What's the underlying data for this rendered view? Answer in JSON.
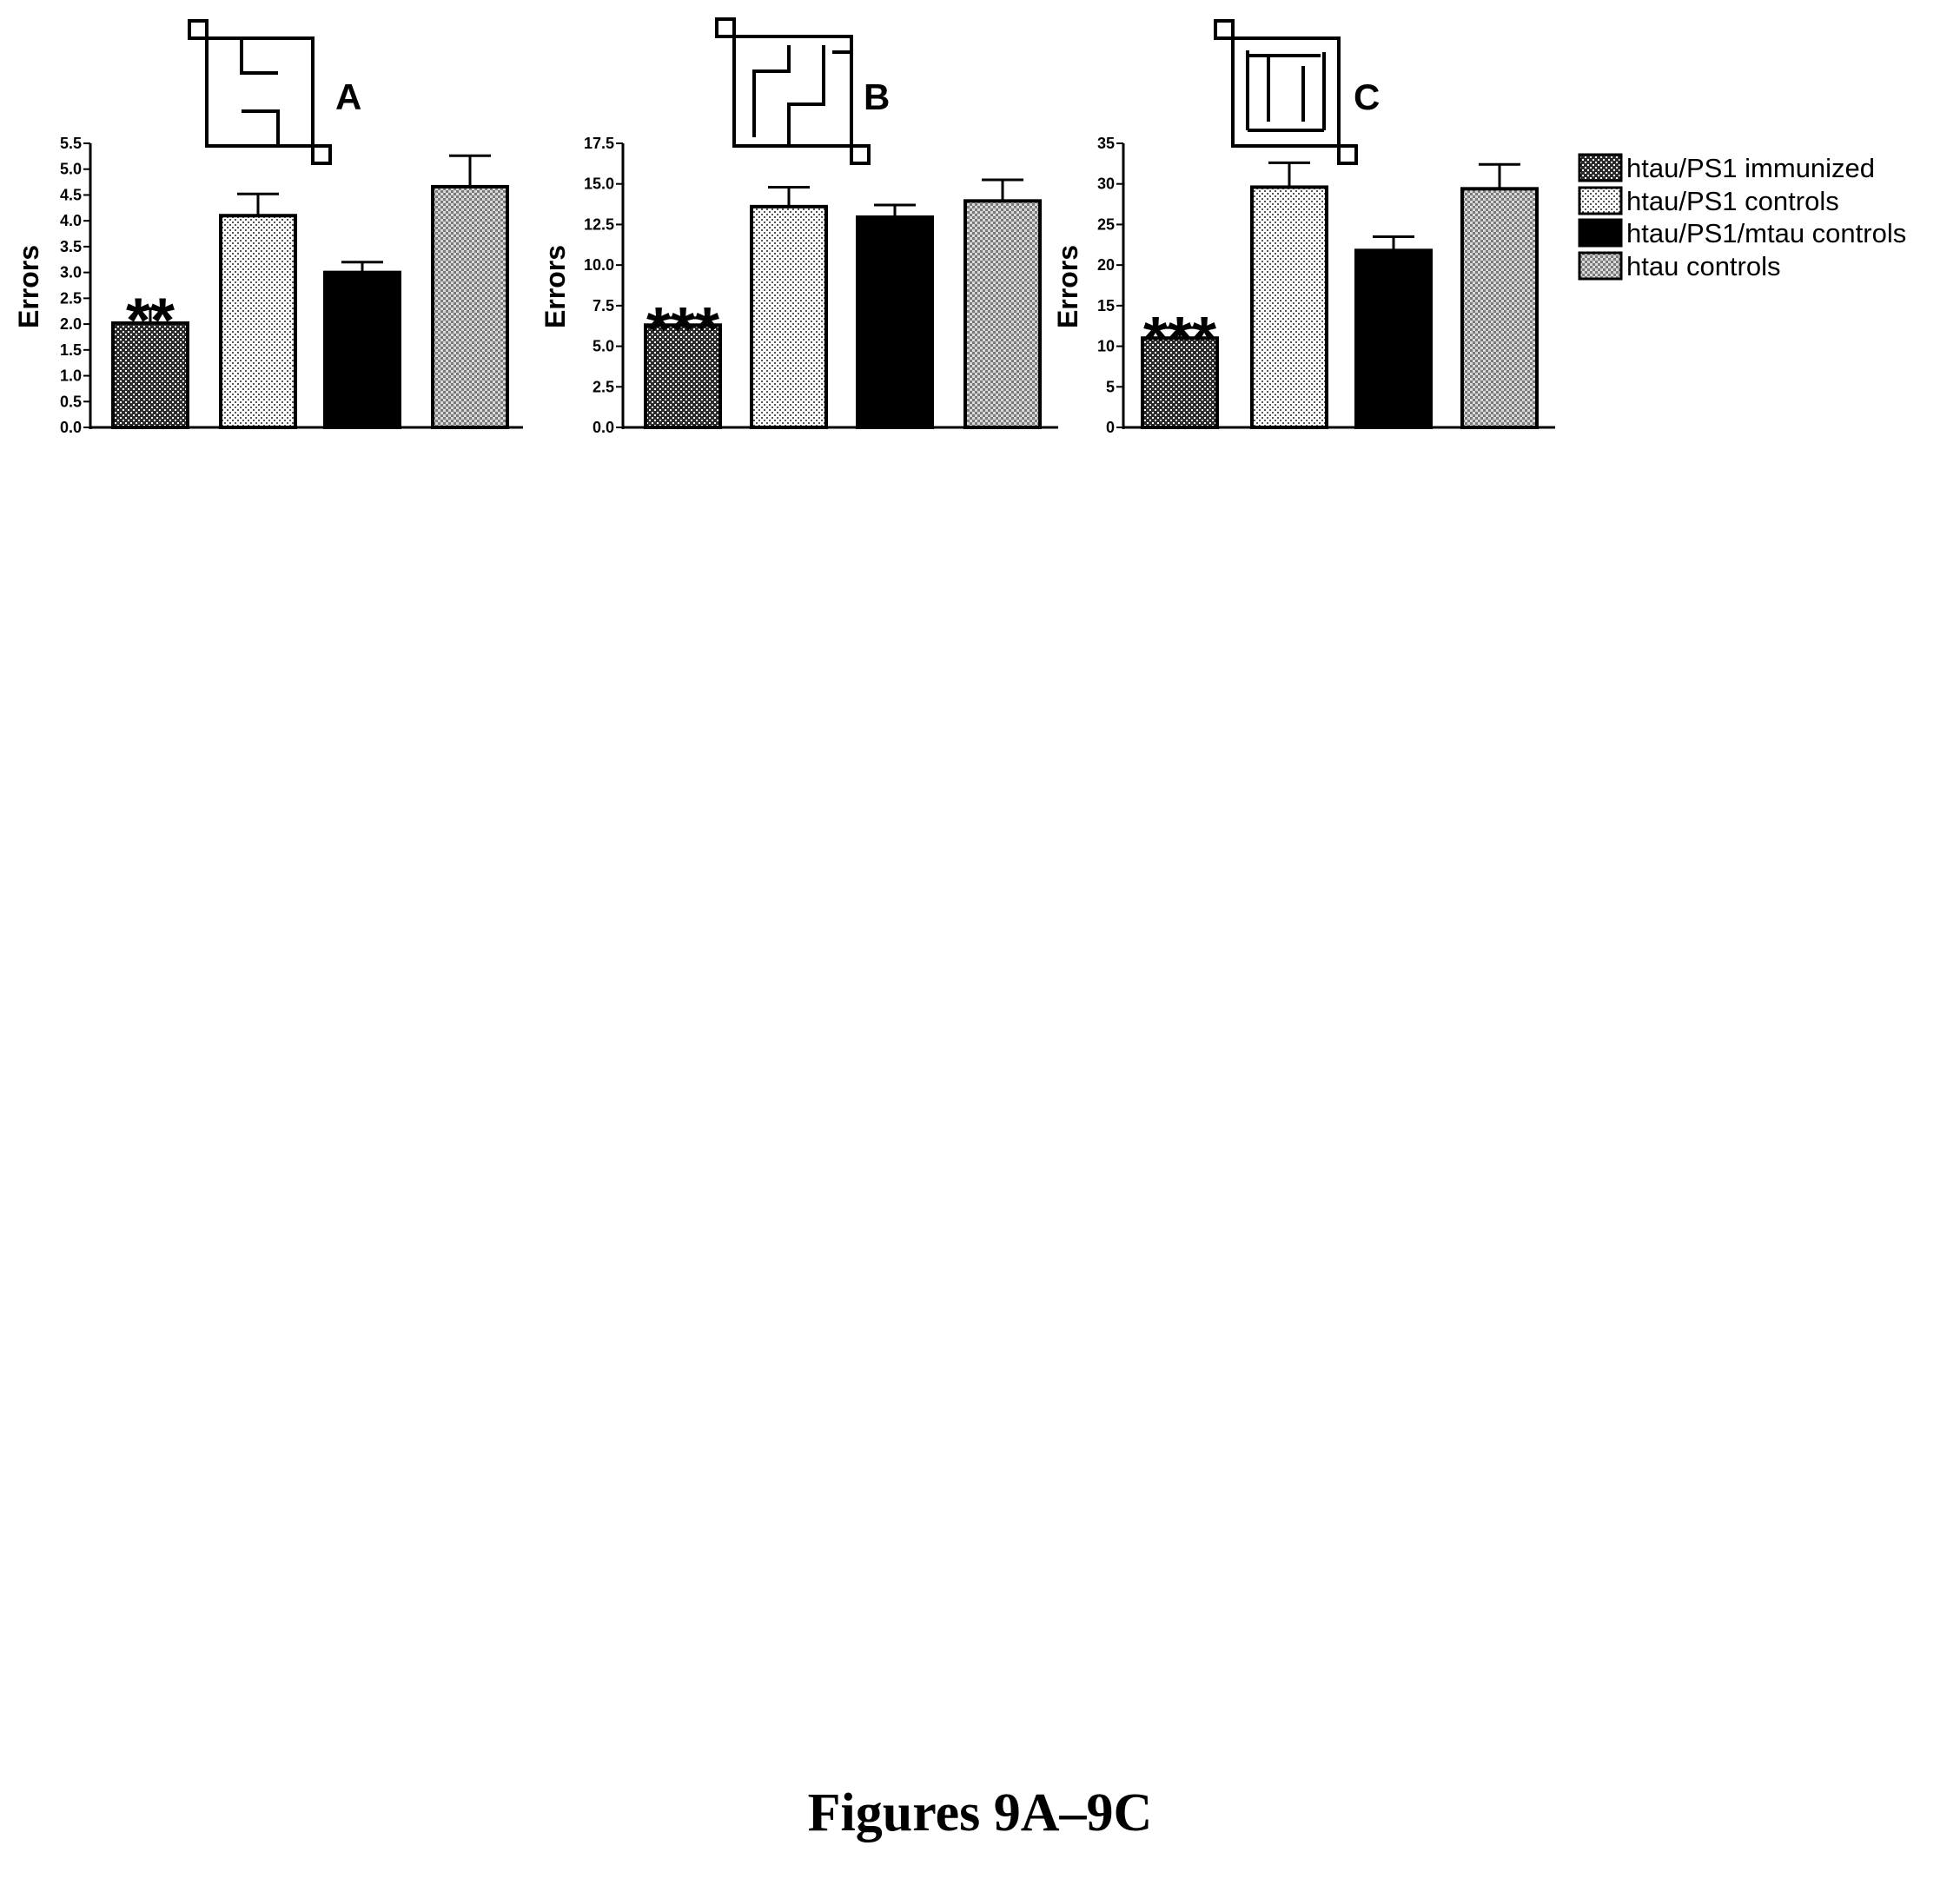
{
  "caption": "Figures 9A–9C",
  "legend": [
    {
      "label": "htau/PS1 immunized",
      "pattern": "pat-dark"
    },
    {
      "label": "htau/PS1 controls",
      "pattern": "pat-light"
    },
    {
      "label": "htau/PS1/mtau controls",
      "pattern": "solid"
    },
    {
      "label": "htau controls",
      "pattern": "pat-medium"
    }
  ],
  "colors": {
    "bar_outline": "#000000",
    "solid_fill": "#000000",
    "background": "#ffffff"
  },
  "chart_data": [
    {
      "type": "bar",
      "panel": "A",
      "ylabel": "Errors",
      "ylim": [
        0,
        5.5
      ],
      "ticks": [
        "0.0",
        "0.5",
        "1.0",
        "1.5",
        "2.0",
        "2.5",
        "3.0",
        "3.5",
        "4.0",
        "4.5",
        "5.0",
        "5.5"
      ],
      "series": [
        {
          "name": "htau/PS1 immunized",
          "value": 2.02,
          "error": 0.28,
          "significance": "**"
        },
        {
          "name": "htau/PS1 controls",
          "value": 4.1,
          "error": 0.42,
          "significance": ""
        },
        {
          "name": "htau/PS1/mtau controls",
          "value": 3.0,
          "error": 0.2,
          "significance": ""
        },
        {
          "name": "htau controls",
          "value": 4.66,
          "error": 0.6,
          "significance": ""
        }
      ]
    },
    {
      "type": "bar",
      "panel": "B",
      "ylabel": "Errors",
      "ylim": [
        0,
        17.5
      ],
      "ticks": [
        "0.0",
        "2.5",
        "5.0",
        "7.5",
        "10.0",
        "12.5",
        "15.0",
        "17.5"
      ],
      "series": [
        {
          "name": "htau/PS1 immunized",
          "value": 6.3,
          "error": 0.45,
          "significance": "***"
        },
        {
          "name": "htau/PS1 controls",
          "value": 13.6,
          "error": 1.2,
          "significance": ""
        },
        {
          "name": "htau/PS1/mtau controls",
          "value": 12.95,
          "error": 0.75,
          "significance": ""
        },
        {
          "name": "htau controls",
          "value": 13.95,
          "error": 1.3,
          "significance": ""
        }
      ]
    },
    {
      "type": "bar",
      "panel": "C",
      "ylabel": "Errors",
      "ylim": [
        0,
        35
      ],
      "ticks": [
        "0",
        "5",
        "10",
        "15",
        "20",
        "25",
        "30",
        "35"
      ],
      "series": [
        {
          "name": "htau/PS1 immunized",
          "value": 11.0,
          "error": 1.3,
          "significance": "***"
        },
        {
          "name": "htau/PS1 controls",
          "value": 29.6,
          "error": 3.0,
          "significance": ""
        },
        {
          "name": "htau/PS1/mtau controls",
          "value": 21.8,
          "error": 1.7,
          "significance": ""
        },
        {
          "name": "htau controls",
          "value": 29.4,
          "error": 3.0,
          "significance": ""
        }
      ]
    }
  ]
}
